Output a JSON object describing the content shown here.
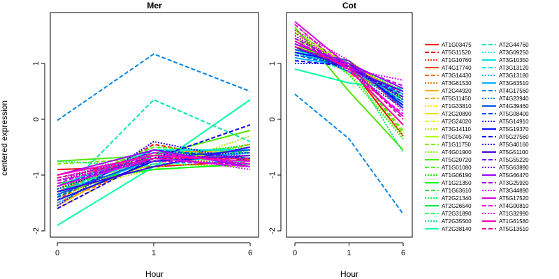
{
  "colors": {
    "background": "#ffffff",
    "axis": "#000000"
  },
  "chart_data": [
    {
      "type": "line",
      "title": "Mer",
      "xlabel": "Hour",
      "ylabel": "centered expression",
      "x": [
        "0",
        "1",
        "6"
      ],
      "ylim": [
        -2.1,
        1.9
      ],
      "yticks": [
        -2,
        -1,
        0,
        1
      ],
      "grid": false,
      "series": [
        {
          "name": "AT1G03475",
          "values": [
            -0.9,
            -0.85,
            -0.75
          ]
        },
        {
          "name": "AT5G11520",
          "values": [
            -1.45,
            -0.45,
            -0.75
          ]
        },
        {
          "name": "AT1G10760",
          "values": [
            -1.4,
            -0.7,
            -0.8
          ]
        },
        {
          "name": "AT4G17740",
          "values": [
            -1.3,
            -0.55,
            -0.72
          ]
        },
        {
          "name": "AT3G14430",
          "values": [
            -1.5,
            -0.75,
            -0.6
          ]
        },
        {
          "name": "AT3G61530",
          "values": [
            -1.6,
            -0.7,
            -0.7
          ]
        },
        {
          "name": "AT2G44920",
          "values": [
            -1.55,
            -0.6,
            -0.55
          ]
        },
        {
          "name": "AT5G11450",
          "values": [
            -1.35,
            -0.8,
            -0.45
          ]
        },
        {
          "name": "AT1G33810",
          "values": [
            -1.45,
            -0.65,
            -0.7
          ]
        },
        {
          "name": "AT2G20890",
          "values": [
            -1.2,
            -0.75,
            -0.65
          ]
        },
        {
          "name": "AT2G24020",
          "values": [
            -1.4,
            -0.55,
            -0.8
          ]
        },
        {
          "name": "AT3G14110",
          "values": [
            -1.3,
            -0.9,
            -0.3
          ]
        },
        {
          "name": "AT5G05740",
          "values": [
            -1.25,
            -0.6,
            -0.7
          ]
        },
        {
          "name": "AT1G11750",
          "values": [
            -0.8,
            -0.7,
            -0.75
          ]
        },
        {
          "name": "AT4G01900",
          "values": [
            -1.35,
            -0.8,
            -0.85
          ]
        },
        {
          "name": "AT5G20720",
          "values": [
            -0.75,
            -0.65,
            -0.2
          ]
        },
        {
          "name": "AT1G01080",
          "values": [
            -1.2,
            -0.5,
            -0.6
          ]
        },
        {
          "name": "AT1G06190",
          "values": [
            -1.4,
            -0.7,
            -0.45
          ]
        },
        {
          "name": "AT1G21350",
          "values": [
            -1.15,
            -0.9,
            -0.8
          ]
        },
        {
          "name": "AT1G63610",
          "values": [
            -1.3,
            -0.75,
            -0.65
          ]
        },
        {
          "name": "AT2G21340",
          "values": [
            -1.25,
            -0.6,
            -0.5
          ]
        },
        {
          "name": "AT2G26540",
          "values": [
            -1.2,
            -0.55,
            -0.7
          ]
        },
        {
          "name": "AT2G31890",
          "values": [
            -1.3,
            -0.65,
            -0.75
          ]
        },
        {
          "name": "AT2G35500",
          "values": [
            -0.75,
            -0.85,
            -0.55
          ]
        },
        {
          "name": "AT2G38140",
          "values": [
            -1.9,
            -0.85,
            0.35
          ]
        },
        {
          "name": "AT2G44760",
          "values": [
            -1.4,
            0.35,
            -0.4
          ]
        },
        {
          "name": "AT3G09250",
          "values": [
            -1.25,
            -0.7,
            -0.75
          ]
        },
        {
          "name": "AT3G10350",
          "values": [
            -1.2,
            -0.55,
            -0.55
          ]
        },
        {
          "name": "AT3G13120",
          "values": [
            -1.1,
            -0.8,
            -0.75
          ]
        },
        {
          "name": "AT3G13180",
          "values": [
            -1.5,
            -0.65,
            -0.7
          ]
        },
        {
          "name": "AT3G63510",
          "values": [
            -1.3,
            -0.75,
            -0.6
          ]
        },
        {
          "name": "AT4G17560",
          "values": [
            -0.02,
            1.17,
            0.5
          ]
        },
        {
          "name": "AT4G23940",
          "values": [
            -1.2,
            -0.6,
            -0.65
          ]
        },
        {
          "name": "AT4G39460",
          "values": [
            -1.35,
            -0.7,
            -0.55
          ]
        },
        {
          "name": "AT5G08400",
          "values": [
            -1.4,
            -0.55,
            -0.7
          ]
        },
        {
          "name": "AT5G14910",
          "values": [
            -1.25,
            -0.65,
            -0.6
          ]
        },
        {
          "name": "AT5G19370",
          "values": [
            -1.45,
            -0.75,
            -0.65
          ]
        },
        {
          "name": "AT5G27560",
          "values": [
            -1.6,
            -0.7,
            -0.1
          ]
        },
        {
          "name": "AT5G40160",
          "values": [
            -1.55,
            -0.4,
            -0.75
          ]
        },
        {
          "name": "AT5G51100",
          "values": [
            -1.3,
            -0.85,
            -0.5
          ]
        },
        {
          "name": "AT5G55220",
          "values": [
            -1.2,
            -0.65,
            -0.7
          ]
        },
        {
          "name": "AT5G63890",
          "values": [
            -1.1,
            -0.6,
            -0.8
          ]
        },
        {
          "name": "AT5G66470",
          "values": [
            -1.0,
            -0.55,
            -0.85
          ]
        },
        {
          "name": "AT3G25920",
          "values": [
            -1.1,
            -0.75,
            -0.8
          ]
        },
        {
          "name": "AT3G44890",
          "values": [
            -1.05,
            -0.65,
            -0.9
          ]
        },
        {
          "name": "AT5G17520",
          "values": [
            -1.2,
            -0.7,
            -0.85
          ]
        },
        {
          "name": "AT4G00810",
          "values": [
            -1.15,
            -0.6,
            -0.8
          ]
        },
        {
          "name": "AT1G32990",
          "values": [
            -1.1,
            -0.7,
            -0.65
          ]
        },
        {
          "name": "AT1G61580",
          "values": [
            -1.0,
            -0.65,
            -0.75
          ]
        },
        {
          "name": "AT5G13510",
          "values": [
            -1.05,
            -0.7,
            -0.7
          ]
        }
      ]
    },
    {
      "type": "line",
      "title": "Cot",
      "xlabel": "Hour",
      "ylabel": "",
      "x": [
        "0",
        "1",
        "6"
      ],
      "ylim": [
        -2.1,
        1.9
      ],
      "yticks": [
        -2,
        -1,
        0,
        1
      ],
      "grid": false,
      "series": [
        {
          "name": "AT1G03475",
          "values": [
            1.3,
            0.95,
            -0.3
          ]
        },
        {
          "name": "AT5G11520",
          "values": [
            1.35,
            1.0,
            0.2
          ]
        },
        {
          "name": "AT1G10760",
          "values": [
            1.4,
            0.9,
            0.3
          ]
        },
        {
          "name": "AT4G17740",
          "values": [
            1.25,
            1.05,
            0.35
          ]
        },
        {
          "name": "AT3G14430",
          "values": [
            1.3,
            0.95,
            0.5
          ]
        },
        {
          "name": "AT3G61530",
          "values": [
            1.2,
            0.85,
            0.4
          ]
        },
        {
          "name": "AT2G44920",
          "values": [
            1.45,
            1.0,
            0.45
          ]
        },
        {
          "name": "AT5G11450",
          "values": [
            1.35,
            0.9,
            0.5
          ]
        },
        {
          "name": "AT1G33810",
          "values": [
            1.3,
            1.05,
            0.35
          ]
        },
        {
          "name": "AT2G20890",
          "values": [
            1.4,
            0.95,
            0.45
          ]
        },
        {
          "name": "AT2G24020",
          "values": [
            1.55,
            0.8,
            0.4
          ]
        },
        {
          "name": "AT3G14110",
          "values": [
            1.5,
            0.95,
            0.3
          ]
        },
        {
          "name": "AT5G05740",
          "values": [
            1.6,
            0.9,
            0.35
          ]
        },
        {
          "name": "AT1G11750",
          "values": [
            1.55,
            1.0,
            -0.2
          ]
        },
        {
          "name": "AT4G01900",
          "values": [
            1.7,
            0.85,
            -0.3
          ]
        },
        {
          "name": "AT5G20720",
          "values": [
            1.65,
            0.5,
            -0.55
          ]
        },
        {
          "name": "AT1G01080",
          "values": [
            1.3,
            1.0,
            -0.25
          ]
        },
        {
          "name": "AT1G06190",
          "values": [
            1.45,
            0.8,
            -0.35
          ]
        },
        {
          "name": "AT1G21350",
          "values": [
            1.35,
            0.95,
            0.4
          ]
        },
        {
          "name": "AT1G63610",
          "values": [
            1.25,
            0.9,
            0.45
          ]
        },
        {
          "name": "AT2G21340",
          "values": [
            1.2,
            1.0,
            0.5
          ]
        },
        {
          "name": "AT2G26540",
          "values": [
            1.3,
            0.85,
            0.45
          ]
        },
        {
          "name": "AT2G31890",
          "values": [
            1.25,
            0.95,
            0.4
          ]
        },
        {
          "name": "AT2G35500",
          "values": [
            1.15,
            1.0,
            -0.6
          ]
        },
        {
          "name": "AT2G38140",
          "values": [
            0.9,
            0.65,
            0.55
          ]
        },
        {
          "name": "AT2G44760",
          "values": [
            1.3,
            0.9,
            0.35
          ]
        },
        {
          "name": "AT3G09250",
          "values": [
            1.2,
            0.85,
            0.5
          ]
        },
        {
          "name": "AT3G10350",
          "values": [
            1.25,
            0.95,
            0.4
          ]
        },
        {
          "name": "AT3G13120",
          "values": [
            1.2,
            0.9,
            0.45
          ]
        },
        {
          "name": "AT3G13180",
          "values": [
            1.15,
            1.0,
            0.35
          ]
        },
        {
          "name": "AT3G63510",
          "values": [
            1.1,
            0.95,
            0.3
          ]
        },
        {
          "name": "AT4G17560",
          "values": [
            0.45,
            -0.35,
            -1.7
          ]
        },
        {
          "name": "AT4G23940",
          "values": [
            1.2,
            0.9,
            0.25
          ]
        },
        {
          "name": "AT4G39460",
          "values": [
            1.25,
            1.05,
            0.2
          ]
        },
        {
          "name": "AT5G08400",
          "values": [
            1.15,
            0.95,
            0.3
          ]
        },
        {
          "name": "AT5G14910",
          "values": [
            1.3,
            0.85,
            0.2
          ]
        },
        {
          "name": "AT5G19370",
          "values": [
            1.2,
            1.0,
            0.25
          ]
        },
        {
          "name": "AT5G27560",
          "values": [
            1.05,
            0.95,
            0.4
          ]
        },
        {
          "name": "AT5G40160",
          "values": [
            1.0,
            1.0,
            0.35
          ]
        },
        {
          "name": "AT5G51100",
          "values": [
            1.3,
            0.9,
            0.5
          ]
        },
        {
          "name": "AT5G55220",
          "values": [
            1.4,
            0.95,
            0.45
          ]
        },
        {
          "name": "AT5G63890",
          "values": [
            1.5,
            0.9,
            0.4
          ]
        },
        {
          "name": "AT5G66470",
          "values": [
            1.35,
            1.0,
            0.55
          ]
        },
        {
          "name": "AT3G25920",
          "values": [
            1.45,
            0.95,
            0.6
          ]
        },
        {
          "name": "AT3G44890",
          "values": [
            1.55,
            0.9,
            0.7
          ]
        },
        {
          "name": "AT5G17520",
          "values": [
            1.75,
            0.95,
            0.05
          ]
        },
        {
          "name": "AT4G00810",
          "values": [
            1.7,
            0.85,
            0.1
          ]
        },
        {
          "name": "AT1G32990",
          "values": [
            1.6,
            1.05,
            0.15
          ]
        },
        {
          "name": "AT1G61580",
          "values": [
            1.4,
            0.9,
            -0.1
          ]
        },
        {
          "name": "AT5G13510",
          "values": [
            1.3,
            0.95,
            0.0
          ]
        }
      ]
    }
  ]
}
